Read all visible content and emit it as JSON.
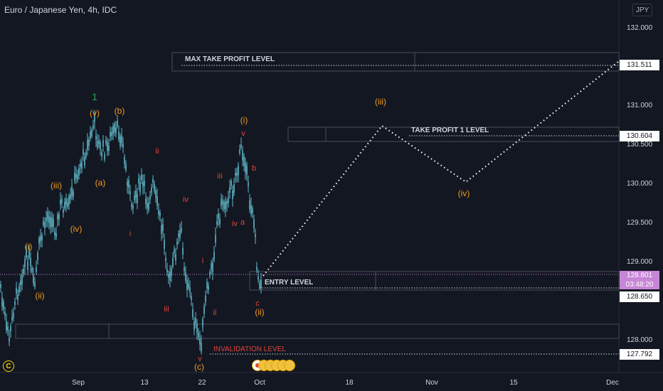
{
  "header": {
    "title": "Euro / Japanese Yen, 4h, IDC",
    "currency": "JPY"
  },
  "price_axis": {
    "ticks": [
      "132.000",
      "131.000",
      "130.500",
      "130.000",
      "129.500",
      "129.000",
      "128.000"
    ],
    "tags": {
      "max_tp": "131.511",
      "tp1": "130.604",
      "current": "128.801",
      "countdown": "03:48:20",
      "entry": "128.650",
      "invalidation": "127.792"
    }
  },
  "time_axis": {
    "labels": [
      "Sep",
      "13",
      "22",
      "Oct",
      "18",
      "Nov",
      "15",
      "Dec"
    ]
  },
  "levels": {
    "max_take_profit": "MAX TAKE PROFIT LEVEL",
    "take_profit_1": "TAKE PROFIT 1 LEVEL",
    "entry": "ENTRY LEVEL",
    "invalidation": "INVALIDATION LEVEL"
  },
  "wave_labels": {
    "orange": [
      "(i)",
      "(ii)",
      "(iii)",
      "(iv)",
      "(v)",
      "(a)",
      "(b)",
      "(c)",
      "(i)",
      "(ii)",
      "(iii)",
      "(iv)"
    ],
    "red": [
      "ii",
      "i",
      "iii",
      "iv",
      "v",
      "i",
      "ii",
      "iii",
      "iv",
      "a",
      "v",
      "b",
      "c"
    ],
    "green": [
      "1"
    ]
  },
  "misc": {
    "source_badge": "C"
  },
  "colors": {
    "background": "#131722",
    "candles": "#5fb8c8",
    "orange_label": "#f39c1f",
    "red_label": "#e2453c",
    "green_label": "#26a65b",
    "level_text": "#d1d4dc",
    "invalidation_text": "#e2453c",
    "current_price": "#c785d6"
  }
}
